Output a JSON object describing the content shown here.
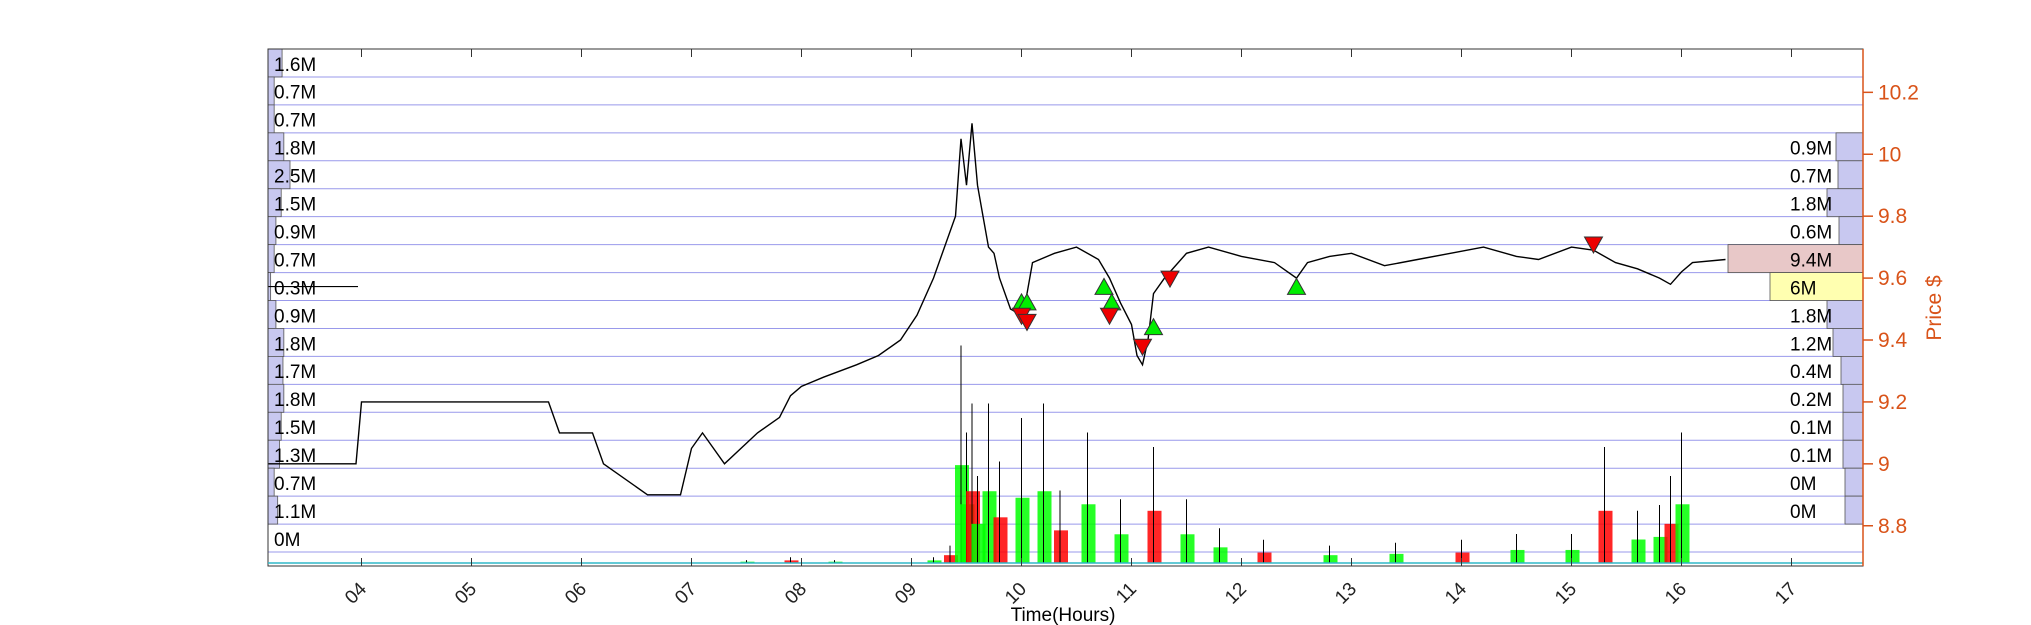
{
  "chart_data": {
    "type": "line",
    "xlabel": "Time(Hours)",
    "ylabel": "Price $",
    "x_ticks": [
      "04",
      "05",
      "06",
      "07",
      "08",
      "09",
      "10",
      "11",
      "12",
      "13",
      "14",
      "15",
      "16",
      "17"
    ],
    "x_range": [
      3.15,
      17.65
    ],
    "y_ticks": [
      "8.8",
      "9",
      "9.2",
      "9.4",
      "9.6",
      "9.8",
      "10",
      "10.2"
    ],
    "y_range": [
      8.67,
      10.34
    ],
    "grid": true,
    "colors": {
      "price_line": "#000000",
      "right_axis": "#d95319",
      "grid": "#8080e6",
      "buy_marker": "#00ee00",
      "sell_marker": "#ee0000",
      "volume_up": "#00ff00",
      "volume_down": "#ff0000",
      "profile_bar": "#c8c8f0",
      "highlight_high": "#e8c8c8",
      "highlight_current": "#ffffb0"
    },
    "left_volume_profile": {
      "labels": [
        "1.6M",
        "0.7M",
        "0.7M",
        "1.8M",
        "2.5M",
        "1.5M",
        "0.9M",
        "0.7M",
        "0.3M",
        "0.9M",
        "1.8M",
        "1.7M",
        "1.8M",
        "1.5M",
        "1.3M",
        "0.7M",
        "1.1M",
        "0M"
      ],
      "values": [
        1.6,
        0.7,
        0.7,
        1.8,
        2.5,
        1.5,
        0.9,
        0.7,
        0.3,
        0.9,
        1.8,
        1.7,
        1.8,
        1.5,
        1.3,
        0.7,
        1.1,
        0
      ]
    },
    "right_volume_profile": {
      "labels": [
        "0.9M",
        "0.7M",
        "1.8M",
        "0.6M",
        "9.4M",
        "6M",
        "1.8M",
        "1.2M",
        "0.4M",
        "0.2M",
        "0.1M",
        "0.1M",
        "0M",
        "0M"
      ],
      "values": [
        0.9,
        0.7,
        1.8,
        0.6,
        9.4,
        6,
        1.8,
        1.2,
        0.4,
        0.2,
        0.1,
        0.1,
        0,
        0
      ]
    },
    "series": [
      {
        "x": [
          3.15,
          3.95,
          4.0,
          4.4,
          4.45,
          4.6,
          5.7,
          5.8,
          6.1,
          6.2,
          6.6,
          6.9,
          7.0,
          7.1,
          7.3,
          7.6,
          7.8,
          7.9,
          8.0,
          8.2,
          8.5,
          8.7,
          8.9,
          9.05,
          9.2,
          9.3,
          9.4,
          9.45,
          9.5,
          9.55,
          9.6,
          9.65,
          9.7,
          9.75,
          9.8,
          9.9,
          10.0,
          10.05,
          10.1,
          10.3,
          10.5,
          10.7,
          10.8,
          10.9,
          11.0,
          11.05,
          11.1,
          11.15,
          11.2,
          11.3,
          11.5,
          11.7,
          12.0,
          12.3,
          12.5,
          12.6,
          12.8,
          13.0,
          13.3,
          13.6,
          13.9,
          14.2,
          14.5,
          14.7,
          15.0,
          15.2,
          15.4,
          15.6,
          15.8,
          15.9,
          16.0,
          16.1,
          16.4
        ],
        "y": [
          9.0,
          9.0,
          9.2,
          9.2,
          9.2,
          9.2,
          9.2,
          9.1,
          9.1,
          9.0,
          8.9,
          8.9,
          9.05,
          9.1,
          9.0,
          9.1,
          9.15,
          9.22,
          9.25,
          9.28,
          9.32,
          9.35,
          9.4,
          9.48,
          9.6,
          9.7,
          9.8,
          10.05,
          9.9,
          10.1,
          9.9,
          9.8,
          9.7,
          9.68,
          9.6,
          9.5,
          9.48,
          9.55,
          9.65,
          9.68,
          9.7,
          9.66,
          9.6,
          9.52,
          9.45,
          9.35,
          9.32,
          9.4,
          9.55,
          9.6,
          9.68,
          9.7,
          9.67,
          9.65,
          9.6,
          9.65,
          9.67,
          9.68,
          9.64,
          9.66,
          9.68,
          9.7,
          9.67,
          9.66,
          9.7,
          9.69,
          9.65,
          9.63,
          9.6,
          9.58,
          9.62,
          9.65,
          9.66
        ]
      }
    ],
    "buy_signals": {
      "x": [
        10.0,
        10.05,
        10.75,
        10.82,
        11.2,
        12.5
      ],
      "y": [
        9.52,
        9.52,
        9.57,
        9.52,
        9.44,
        9.57
      ]
    },
    "sell_signals": {
      "x": [
        10.0,
        10.05,
        10.8,
        11.1,
        11.35,
        15.2
      ],
      "y": [
        9.48,
        9.46,
        9.48,
        9.38,
        9.6,
        9.71
      ]
    },
    "volume": {
      "x": [
        7.5,
        7.9,
        8.3,
        9.2,
        9.35,
        9.45,
        9.5,
        9.55,
        9.6,
        9.7,
        9.8,
        10.0,
        10.2,
        10.35,
        10.6,
        10.9,
        11.2,
        11.5,
        11.8,
        12.2,
        12.8,
        13.4,
        14.0,
        14.5,
        15.0,
        15.3,
        15.6,
        15.8,
        15.9,
        16.0
      ],
      "values": [
        0.01,
        0.02,
        0.01,
        0.02,
        0.06,
        0.75,
        0.45,
        0.55,
        0.3,
        0.55,
        0.35,
        0.5,
        0.55,
        0.25,
        0.45,
        0.22,
        0.4,
        0.22,
        0.12,
        0.08,
        0.06,
        0.07,
        0.08,
        0.1,
        0.1,
        0.4,
        0.18,
        0.2,
        0.3,
        0.45
      ]
    }
  }
}
